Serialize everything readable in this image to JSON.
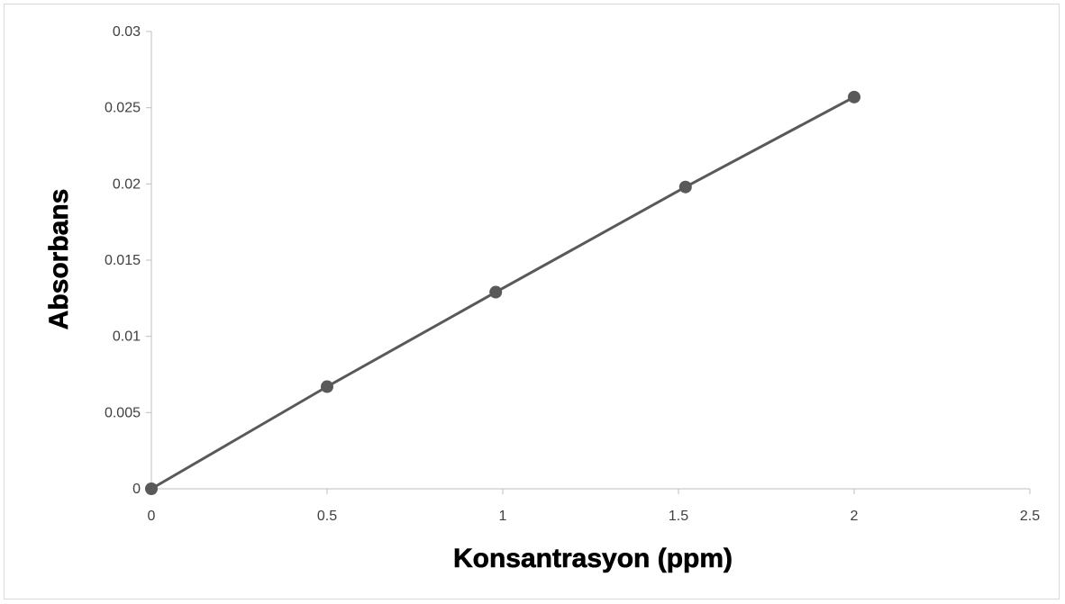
{
  "chart_data": {
    "type": "scatter",
    "title": "",
    "xlabel": "Konsantrasyon (ppm)",
    "ylabel": "Absorbans",
    "xlim": [
      0,
      2.5
    ],
    "ylim": [
      0,
      0.03
    ],
    "x_ticks": [
      "0",
      "0.5",
      "1",
      "1.5",
      "2",
      "2.5"
    ],
    "y_ticks": [
      "0",
      "0.005",
      "0.01",
      "0.015",
      "0.02",
      "0.025",
      "0.03"
    ],
    "grid": false,
    "legend": "none",
    "series": [
      {
        "color": "#595959",
        "style": "line-with-markers",
        "x": [
          0,
          0.5,
          0.98,
          1.52,
          2.0
        ],
        "y": [
          0,
          0.0067,
          0.0129,
          0.0198,
          0.0257
        ]
      }
    ]
  }
}
